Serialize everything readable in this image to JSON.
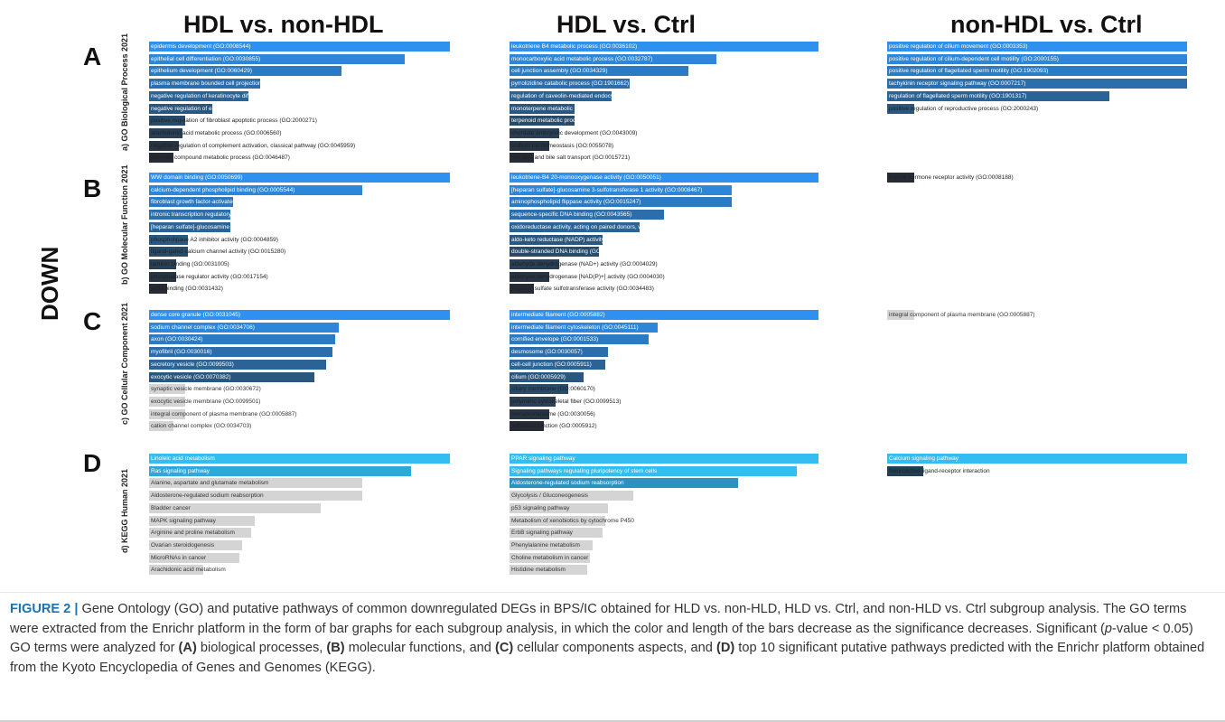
{
  "headers": {
    "col1": "HDL vs. non-HDL",
    "col2": "HDL vs.  Ctrl",
    "col3": "non-HDL vs. Ctrl"
  },
  "row_letters": [
    "A",
    "B",
    "C",
    "D"
  ],
  "side_labels": [
    "a) GO Biological Process 2021",
    "b) GO Molecular Function 2021",
    "c) GO Cellular Component 2021",
    "d) KEGG Human 2021"
  ],
  "down_label": "DOWN",
  "colors": {
    "go_scale": [
      "#2e91ef",
      "#2d86d8",
      "#2c7ac2",
      "#2b6eab",
      "#2a6395",
      "#29577f",
      "#284b6a",
      "#283f55",
      "#273443",
      "#262b35"
    ],
    "kegg_cyan": "#34bdf1",
    "kegg_cyan2": "#2ea8da",
    "kegg_cyan3": "#2b91bf",
    "kegg_dark": "#233f55",
    "grey": "#d4d4d4",
    "caption_accent": "#1a73b5"
  },
  "panels": [
    {
      "row": 0,
      "col": 0,
      "items": [
        {
          "label": "epidermis development (GO:0008544)",
          "value": 1.0,
          "tone": "go"
        },
        {
          "label": "epithelial cell differentiation (GO:0030855)",
          "value": 0.85,
          "tone": "go"
        },
        {
          "label": "epithelium development (GO:0060429)",
          "value": 0.64,
          "tone": "go"
        },
        {
          "label": "plasma membrane bounded cell projection morphogenesis (GO:0120039)",
          "value": 0.37,
          "tone": "go"
        },
        {
          "label": "negative regulation of keratinocyte differentiation (GO:0045617)",
          "value": 0.33,
          "tone": "go"
        },
        {
          "label": "negative regulation of epidermal cell differentiation (GO:0045605)",
          "value": 0.21,
          "tone": "go"
        },
        {
          "label": "positive regulation of fibroblast apoptotic process (GO:2000271)",
          "value": 0.12,
          "tone": "go"
        },
        {
          "label": "arachidonic acid metabolic process (GO:0006560)",
          "value": 0.11,
          "tone": "go"
        },
        {
          "label": "negative regulation of complement activation, classical pathway (GO:0045959)",
          "value": 0.1,
          "tone": "go"
        },
        {
          "label": "phenolic compound metabolic process (GO:0046487)",
          "value": 0.08,
          "tone": "go"
        }
      ]
    },
    {
      "row": 0,
      "col": 1,
      "items": [
        {
          "label": "leukotriene B4 metabolic process (GO:0036102)",
          "value": 1.0,
          "tone": "go"
        },
        {
          "label": "monocarboxylic acid metabolic process (GO:0032787)",
          "value": 0.67,
          "tone": "go"
        },
        {
          "label": "cell junction assembly (GO:0034329)",
          "value": 0.58,
          "tone": "go"
        },
        {
          "label": "pyrrolizidine catabolic process (GO:1901662)",
          "value": 0.39,
          "tone": "go"
        },
        {
          "label": "regulation of caveolin-mediated endocytosis (GO:2001286)",
          "value": 0.33,
          "tone": "go"
        },
        {
          "label": "monoterpene metabolic process (GO:0009233)",
          "value": 0.21,
          "tone": "go"
        },
        {
          "label": "terpenoid metabolic process (GO:0006690)",
          "value": 0.21,
          "tone": "go"
        },
        {
          "label": "chordate embryonic development (GO:0043009)",
          "value": 0.16,
          "tone": "go"
        },
        {
          "label": "sodium ion homeostasis (GO:0055078)",
          "value": 0.13,
          "tone": "go"
        },
        {
          "label": "bile acid and bile salt transport (GO:0015721)",
          "value": 0.08,
          "tone": "go"
        }
      ]
    },
    {
      "row": 0,
      "col": 2,
      "items": [
        {
          "label": "positive regulation of cilium movement (GO:0003353)",
          "value": 1.0,
          "tone": "go"
        },
        {
          "label": "positive regulation of cilium-dependent cell motility (GO:2000155)",
          "value": 1.0,
          "tone": "go"
        },
        {
          "label": "positive regulation of flagellated sperm motility (GO:1902093)",
          "value": 1.0,
          "tone": "go"
        },
        {
          "label": "tachykinin receptor signaling pathway (GO:0007217)",
          "value": 1.0,
          "tone": "go"
        },
        {
          "label": "regulation of flagellated sperm motility (GO:1901317)",
          "value": 0.74,
          "tone": "go"
        },
        {
          "label": "positive regulation of reproductive process (GO:2000243)",
          "value": 0.09,
          "tone": "go"
        }
      ]
    },
    {
      "row": 1,
      "col": 0,
      "items": [
        {
          "label": "WW domain binding (GO:0050699)",
          "value": 1.0,
          "tone": "go"
        },
        {
          "label": "calcium-dependent phospholipid binding (GO:0005544)",
          "value": 0.71,
          "tone": "go"
        },
        {
          "label": "fibroblast growth factor-activated receptor activity (GO:0005007)",
          "value": 0.28,
          "tone": "go"
        },
        {
          "label": "intronic transcription regulatory region sequence-specific DNA binding (GO:0001161)",
          "value": 0.27,
          "tone": "go"
        },
        {
          "label": "[heparan sulfate]-glucosamine 3-sulfotransferase 1 activity (GO:0008467)",
          "value": 0.27,
          "tone": "go"
        },
        {
          "label": "phospholipase A2 inhibitor activity (GO:0004859)",
          "value": 0.13,
          "tone": "go"
        },
        {
          "label": "ligand-gated calcium channel activity (GO:0015280)",
          "value": 0.13,
          "tone": "go"
        },
        {
          "label": "laminin binding (GO:0031005)",
          "value": 0.09,
          "tone": "go"
        },
        {
          "label": "phosphatase regulator activity (GO:0017154)",
          "value": 0.09,
          "tone": "go"
        },
        {
          "label": "actin binding (GO:0031432)",
          "value": 0.06,
          "tone": "go"
        }
      ]
    },
    {
      "row": 1,
      "col": 1,
      "items": [
        {
          "label": "leukotriene-B4 20-monooxygenase activity (GO:0050051)",
          "value": 1.0,
          "tone": "go"
        },
        {
          "label": "[heparan sulfate]-glucosamine 3-sulfotransferase 1 activity (GO:0008467)",
          "value": 0.72,
          "tone": "go"
        },
        {
          "label": "aminophospholipid flippase activity (GO:0015247)",
          "value": 0.72,
          "tone": "go"
        },
        {
          "label": "sequence-specific DNA binding (GO:0043565)",
          "value": 0.5,
          "tone": "go"
        },
        {
          "label": "oxidoreductase activity, acting on paired donors, with incorporation or reduction of molecular oxygen, NAD(P)H as one d",
          "value": 0.42,
          "tone": "go"
        },
        {
          "label": "aldo-keto reductase (NADP) activity (GO:0004033)",
          "value": 0.3,
          "tone": "go"
        },
        {
          "label": "double-stranded DNA binding (GO:0003690)",
          "value": 0.29,
          "tone": "go"
        },
        {
          "label": "aldehyde dehydrogenase (NAD+) activity (GO:0004029)",
          "value": 0.16,
          "tone": "go"
        },
        {
          "label": "aldehyde dehydrogenase [NAD(P)+] activity (GO:0004030)",
          "value": 0.13,
          "tone": "go"
        },
        {
          "label": "heparan sulfate sulfotransferase activity (GO:0034483)",
          "value": 0.08,
          "tone": "go"
        }
      ]
    },
    {
      "row": 1,
      "col": 2,
      "items": [
        {
          "label": "thyroid hormone receptor activity (GO:0008188)",
          "value": 0.09,
          "tone": "go-dark"
        }
      ]
    },
    {
      "row": 2,
      "col": 0,
      "items": [
        {
          "label": "dense core granule (GO:0031045)",
          "value": 1.0,
          "tone": "go"
        },
        {
          "label": "sodium channel complex (GO:0034706)",
          "value": 0.63,
          "tone": "go"
        },
        {
          "label": "axon (GO:0030424)",
          "value": 0.62,
          "tone": "go"
        },
        {
          "label": "myofibril (GO:0030016)",
          "value": 0.61,
          "tone": "go"
        },
        {
          "label": "secretory vesicle (GO:0099503)",
          "value": 0.59,
          "tone": "go"
        },
        {
          "label": "exocytic vesicle (GO:0070382)",
          "value": 0.55,
          "tone": "go"
        },
        {
          "label": "synaptic vesicle membrane (GO:0030672)",
          "value": 0.12,
          "tone": "grey"
        },
        {
          "label": "exocytic vesicle membrane (GO:0099501)",
          "value": 0.12,
          "tone": "grey"
        },
        {
          "label": "integral component of plasma membrane (GO:0005887)",
          "value": 0.12,
          "tone": "grey"
        },
        {
          "label": "cation channel complex (GO:0034703)",
          "value": 0.08,
          "tone": "grey"
        }
      ]
    },
    {
      "row": 2,
      "col": 1,
      "items": [
        {
          "label": "intermediate filament (GO:0005882)",
          "value": 1.0,
          "tone": "go"
        },
        {
          "label": "intermediate filament cytoskeleton (GO:0045111)",
          "value": 0.48,
          "tone": "go"
        },
        {
          "label": "cornified envelope (GO:0001533)",
          "value": 0.45,
          "tone": "go"
        },
        {
          "label": "desmosome (GO:0030057)",
          "value": 0.32,
          "tone": "go"
        },
        {
          "label": "cell-cell junction (GO:0005911)",
          "value": 0.31,
          "tone": "go"
        },
        {
          "label": "cilium (GO:0005929)",
          "value": 0.24,
          "tone": "go"
        },
        {
          "label": "ciliary membrane (GO:0060170)",
          "value": 0.19,
          "tone": "go"
        },
        {
          "label": "polymeric cytoskeletal fiber (GO:0099513)",
          "value": 0.15,
          "tone": "go"
        },
        {
          "label": "hemidesmosome (GO:0030056)",
          "value": 0.13,
          "tone": "go"
        },
        {
          "label": "adherens junction (GO:0005912)",
          "value": 0.11,
          "tone": "go"
        }
      ]
    },
    {
      "row": 2,
      "col": 2,
      "items": [
        {
          "label": "integral component of plasma membrane (GO:0005887)",
          "value": 0.09,
          "tone": "grey"
        }
      ]
    },
    {
      "row": 3,
      "col": 0,
      "items": [
        {
          "label": "Linoleic acid metabolism",
          "value": 1.0,
          "tone": "cyan"
        },
        {
          "label": "Ras signaling pathway",
          "value": 0.87,
          "tone": "cyan2"
        },
        {
          "label": "Alanine, aspartate and glutamate metabolism",
          "value": 0.71,
          "tone": "grey"
        },
        {
          "label": "Aldosterone-regulated sodium reabsorption",
          "value": 0.71,
          "tone": "grey"
        },
        {
          "label": "Bladder cancer",
          "value": 0.57,
          "tone": "grey"
        },
        {
          "label": "MAPK signaling pathway",
          "value": 0.35,
          "tone": "grey"
        },
        {
          "label": "Arginine and proline metabolism",
          "value": 0.34,
          "tone": "grey"
        },
        {
          "label": "Ovarian steroidogenesis",
          "value": 0.31,
          "tone": "grey"
        },
        {
          "label": "MicroRNAs in cancer",
          "value": 0.3,
          "tone": "grey"
        },
        {
          "label": "Arachidonic acid metabolism",
          "value": 0.18,
          "tone": "grey"
        }
      ]
    },
    {
      "row": 3,
      "col": 1,
      "items": [
        {
          "label": "PPAR signaling pathway",
          "value": 1.0,
          "tone": "cyan"
        },
        {
          "label": "Signaling pathways regulating pluripotency of stem cells",
          "value": 0.93,
          "tone": "cyan"
        },
        {
          "label": "Aldosterone-regulated sodium reabsorption",
          "value": 0.74,
          "tone": "cyan3"
        },
        {
          "label": "Glycolysis / Gluconeogenesis",
          "value": 0.4,
          "tone": "grey"
        },
        {
          "label": "p53 signaling pathway",
          "value": 0.32,
          "tone": "grey"
        },
        {
          "label": "Metabolism of xenobiotics by cytochrome P450",
          "value": 0.31,
          "tone": "grey"
        },
        {
          "label": "ErbB signaling pathway",
          "value": 0.3,
          "tone": "grey"
        },
        {
          "label": "Phenylalanine metabolism",
          "value": 0.27,
          "tone": "grey"
        },
        {
          "label": "Choline metabolism in cancer",
          "value": 0.26,
          "tone": "grey"
        },
        {
          "label": "Histidine metabolism",
          "value": 0.25,
          "tone": "grey"
        }
      ]
    },
    {
      "row": 3,
      "col": 2,
      "items": [
        {
          "label": "Calcium signaling pathway",
          "value": 1.0,
          "tone": "cyan"
        },
        {
          "label": "Neuroactive ligand-receptor interaction",
          "value": 0.12,
          "tone": "dark"
        }
      ]
    }
  ],
  "caption": {
    "fig_label": "FIGURE 2 |",
    "part1": " Gene Ontology (GO) and putative pathways of common downregulated DEGs in BPS/IC obtained for HLD vs. non-HLD, HLD vs. Ctrl, and non-HLD vs. Ctrl subgroup analysis. The GO terms were extracted from the Enrichr platform in the form of bar graphs for each subgroup analysis, in which the color and length of the bars decrease as the significance decreases. Significant (",
    "p_italic": "p",
    "part2": "-value < 0.05) GO terms were analyzed for ",
    "A": "(A)",
    "part3": " biological processes, ",
    "B": "(B)",
    "part4": " molecular functions, and ",
    "C": "(C)",
    "part5": " cellular components aspects, and ",
    "D": "(D)",
    "part6": " top 10 significant putative pathways predicted with the Enrichr platform obtained from the Kyoto Encyclopedia of Genes and Genomes (KEGG)."
  }
}
